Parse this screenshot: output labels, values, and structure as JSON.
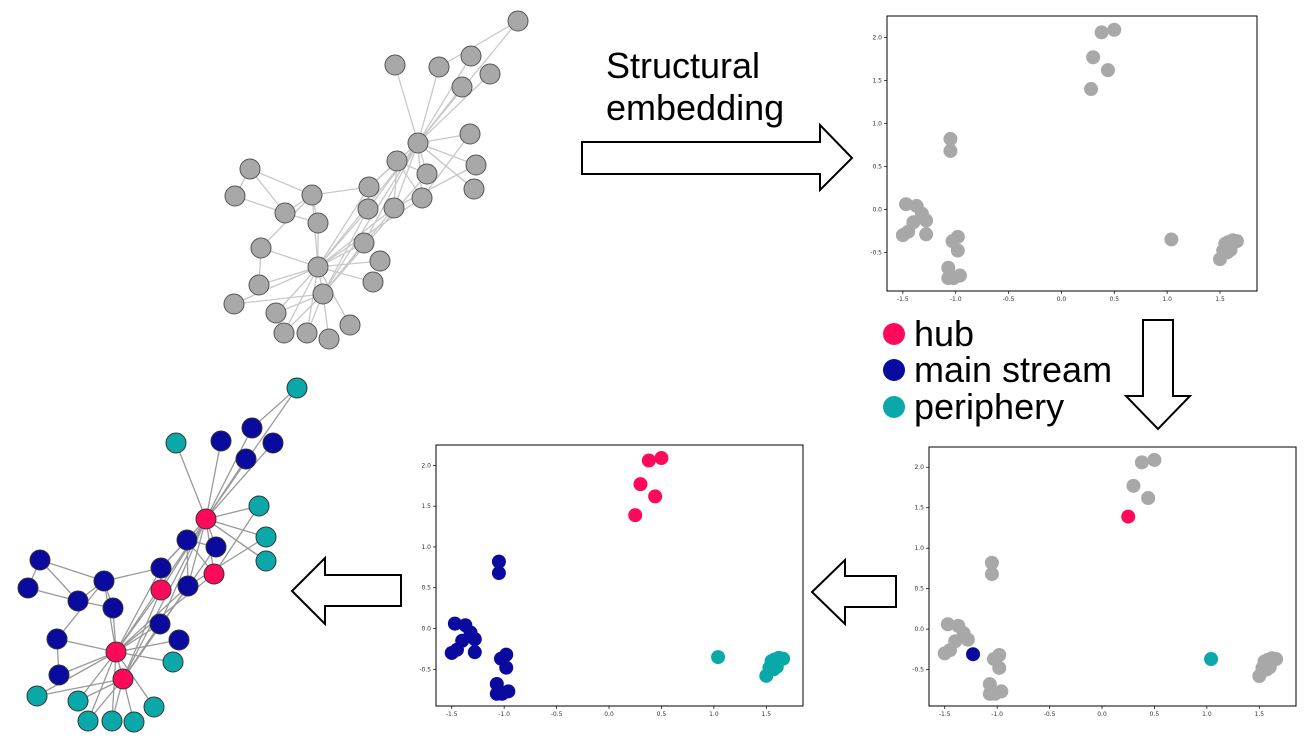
{
  "caption": {
    "line1": "Structural",
    "line2": "embedding"
  },
  "legend": [
    {
      "key": "hub",
      "label": "hub",
      "color": "#ff0a5a"
    },
    {
      "key": "main",
      "label": "main stream",
      "color": "#0a0a9e"
    },
    {
      "key": "periphery",
      "label": "periphery",
      "color": "#0aa8a8"
    }
  ],
  "colors": {
    "gray_node": "#a8a8a8",
    "edge": "#c8c8c8",
    "edge_dark": "#999999"
  },
  "chart_data": [
    {
      "type": "scatter",
      "panel": "embedding-gray",
      "xlim": [
        -1.65,
        1.85
      ],
      "ylim": [
        -0.95,
        2.25
      ],
      "xticks": [
        "-1.5",
        "-1.0",
        "-0.5",
        "0.0",
        "0.5",
        "1.0",
        "1.5"
      ],
      "yticks": [
        "-0.5",
        "0.0",
        "0.5",
        "1.0",
        "1.5",
        "2.0"
      ],
      "points": [
        [
          0.28,
          1.4
        ],
        [
          0.3,
          1.77
        ],
        [
          0.38,
          2.06
        ],
        [
          0.44,
          1.62
        ],
        [
          0.5,
          2.09
        ],
        [
          -1.05,
          0.82
        ],
        [
          -1.05,
          0.68
        ],
        [
          -1.47,
          0.06
        ],
        [
          -1.37,
          0.04
        ],
        [
          -1.32,
          -0.05
        ],
        [
          -1.28,
          -0.13
        ],
        [
          -1.4,
          -0.15
        ],
        [
          -1.45,
          -0.26
        ],
        [
          -1.5,
          -0.3
        ],
        [
          -1.28,
          -0.29
        ],
        [
          -1.03,
          -0.37
        ],
        [
          -0.98,
          -0.32
        ],
        [
          -0.98,
          -0.48
        ],
        [
          -1.07,
          -0.68
        ],
        [
          -1.02,
          -0.8
        ],
        [
          -0.96,
          -0.77
        ],
        [
          -1.07,
          -0.8
        ],
        [
          1.04,
          -0.35
        ],
        [
          1.5,
          -0.58
        ],
        [
          1.55,
          -0.4
        ],
        [
          1.58,
          -0.38
        ],
        [
          1.6,
          -0.47
        ],
        [
          1.62,
          -0.36
        ],
        [
          1.66,
          -0.37
        ],
        [
          1.53,
          -0.48
        ],
        [
          1.57,
          -0.5
        ]
      ]
    },
    {
      "type": "scatter",
      "panel": "embedding-partial",
      "xlim": [
        -1.65,
        1.85
      ],
      "ylim": [
        -0.95,
        2.25
      ],
      "xticks": [
        "-1.5",
        "-1.0",
        "-0.5",
        "0.0",
        "0.5",
        "1.0",
        "1.5"
      ],
      "yticks": [
        "-0.5",
        "0.0",
        "0.5",
        "1.0",
        "1.5",
        "2.0"
      ],
      "points": [
        [
          0.38,
          2.06,
          "g"
        ],
        [
          0.5,
          2.09,
          "g"
        ],
        [
          0.3,
          1.77,
          "g"
        ],
        [
          0.44,
          1.62,
          "g"
        ],
        [
          0.25,
          1.39,
          "h"
        ],
        [
          -1.05,
          0.82,
          "g"
        ],
        [
          -1.05,
          0.68,
          "g"
        ],
        [
          -1.47,
          0.06,
          "g"
        ],
        [
          -1.37,
          0.04,
          "g"
        ],
        [
          -1.32,
          -0.05,
          "g"
        ],
        [
          -1.28,
          -0.13,
          "g"
        ],
        [
          -1.4,
          -0.15,
          "g"
        ],
        [
          -1.45,
          -0.26,
          "g"
        ],
        [
          -1.5,
          -0.3,
          "g"
        ],
        [
          -1.23,
          -0.31,
          "m"
        ],
        [
          -1.03,
          -0.37,
          "g"
        ],
        [
          -0.98,
          -0.32,
          "g"
        ],
        [
          -0.98,
          -0.48,
          "g"
        ],
        [
          -1.07,
          -0.68,
          "g"
        ],
        [
          -1.02,
          -0.8,
          "g"
        ],
        [
          -0.96,
          -0.77,
          "g"
        ],
        [
          -1.07,
          -0.8,
          "g"
        ],
        [
          1.04,
          -0.37,
          "p"
        ],
        [
          1.5,
          -0.58,
          "g"
        ],
        [
          1.55,
          -0.4,
          "g"
        ],
        [
          1.58,
          -0.38,
          "g"
        ],
        [
          1.6,
          -0.47,
          "g"
        ],
        [
          1.62,
          -0.36,
          "g"
        ],
        [
          1.66,
          -0.37,
          "g"
        ],
        [
          1.53,
          -0.48,
          "g"
        ],
        [
          1.57,
          -0.5,
          "g"
        ]
      ]
    },
    {
      "type": "scatter",
      "panel": "embedding-colored",
      "xlim": [
        -1.65,
        1.85
      ],
      "ylim": [
        -0.95,
        2.25
      ],
      "xticks": [
        "-1.5",
        "-1.0",
        "-0.5",
        "0.0",
        "0.5",
        "1.0",
        "1.5"
      ],
      "yticks": [
        "-0.5",
        "0.0",
        "0.5",
        "1.0",
        "1.5",
        "2.0"
      ],
      "points": [
        [
          0.38,
          2.06,
          "h"
        ],
        [
          0.5,
          2.09,
          "h"
        ],
        [
          0.3,
          1.77,
          "h"
        ],
        [
          0.44,
          1.62,
          "h"
        ],
        [
          0.25,
          1.39,
          "h"
        ],
        [
          -1.05,
          0.82,
          "m"
        ],
        [
          -1.05,
          0.68,
          "m"
        ],
        [
          -1.47,
          0.06,
          "m"
        ],
        [
          -1.37,
          0.04,
          "m"
        ],
        [
          -1.32,
          -0.05,
          "m"
        ],
        [
          -1.28,
          -0.13,
          "m"
        ],
        [
          -1.4,
          -0.15,
          "m"
        ],
        [
          -1.45,
          -0.26,
          "m"
        ],
        [
          -1.5,
          -0.3,
          "m"
        ],
        [
          -1.28,
          -0.29,
          "m"
        ],
        [
          -1.03,
          -0.37,
          "m"
        ],
        [
          -0.98,
          -0.32,
          "m"
        ],
        [
          -0.98,
          -0.48,
          "m"
        ],
        [
          -1.07,
          -0.68,
          "m"
        ],
        [
          -1.02,
          -0.8,
          "m"
        ],
        [
          -0.96,
          -0.77,
          "m"
        ],
        [
          -1.07,
          -0.8,
          "m"
        ],
        [
          1.04,
          -0.35,
          "p"
        ],
        [
          1.5,
          -0.58,
          "p"
        ],
        [
          1.55,
          -0.4,
          "p"
        ],
        [
          1.58,
          -0.38,
          "p"
        ],
        [
          1.6,
          -0.47,
          "p"
        ],
        [
          1.62,
          -0.36,
          "p"
        ],
        [
          1.66,
          -0.37,
          "p"
        ],
        [
          1.53,
          -0.48,
          "p"
        ],
        [
          1.57,
          -0.5,
          "p"
        ]
      ]
    }
  ]
}
